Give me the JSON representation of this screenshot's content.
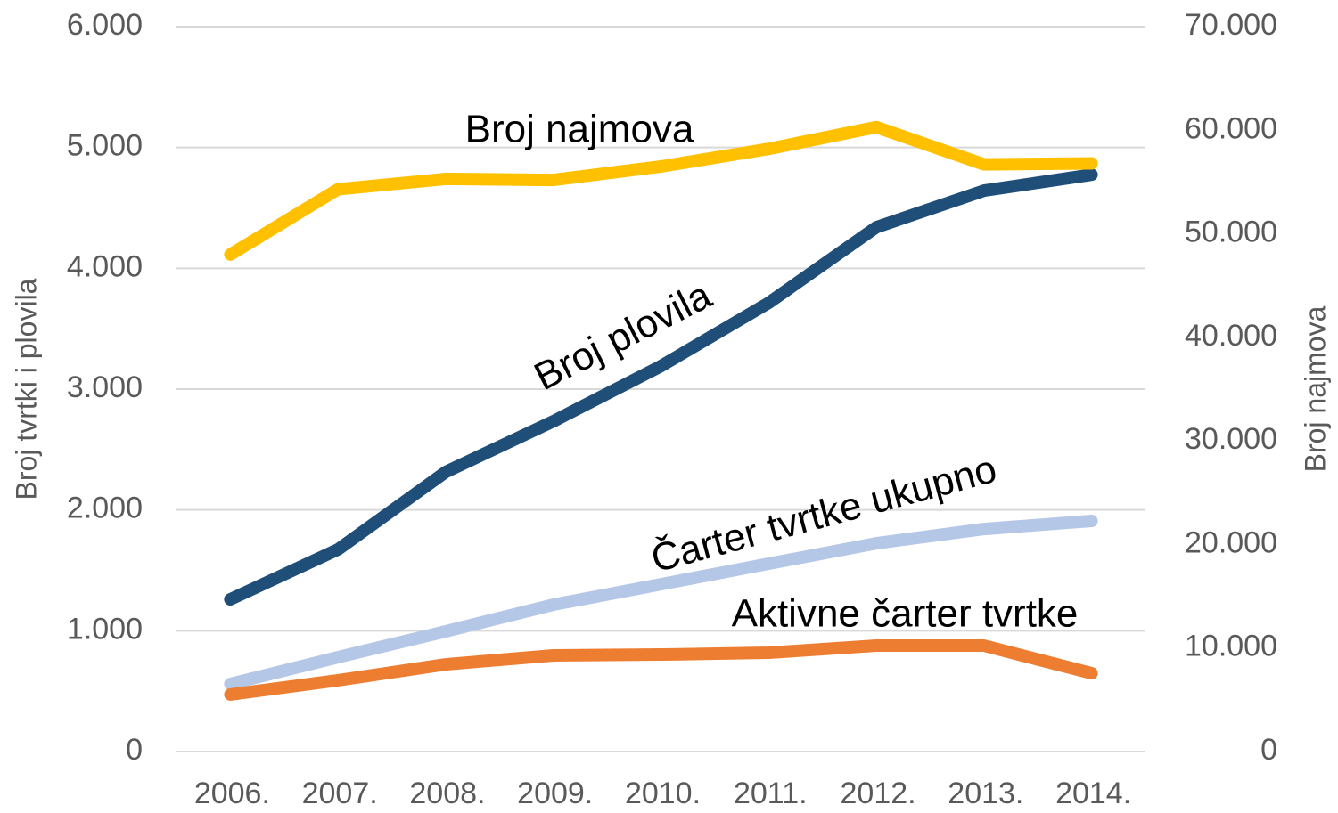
{
  "chart_data": {
    "type": "line",
    "categories": [
      "2006.",
      "2007.",
      "2008.",
      "2009.",
      "2010.",
      "2011.",
      "2012.",
      "2013.",
      "2014."
    ],
    "ylabel": "Broj tvrtki i plovila",
    "y2label": "Broj najmova",
    "ylim": [
      0,
      6000
    ],
    "yticks": [
      0,
      {
        "value": 1000,
        "label": "1.000"
      },
      {
        "value": 2000,
        "label": "2.000"
      },
      {
        "value": 3000,
        "label": "3.000"
      },
      {
        "value": 4000,
        "label": "4.000"
      },
      {
        "value": 5000,
        "label": "5.000"
      },
      {
        "value": 6000,
        "label": "6.000"
      }
    ],
    "y2lim": [
      0,
      70000
    ],
    "y2ticks": [
      0,
      {
        "value": 10000,
        "label": "10.000"
      },
      {
        "value": 20000,
        "label": "20.000"
      },
      {
        "value": 30000,
        "label": "30.000"
      },
      {
        "value": 40000,
        "label": "40.000"
      },
      {
        "value": 50000,
        "label": "50.000"
      },
      {
        "value": 60000,
        "label": "60.000"
      },
      {
        "value": 70000,
        "label": "70.000"
      }
    ],
    "grid": true,
    "series": [
      {
        "name": "Čarter tvrtke ukupno",
        "color": "#b4c7e7",
        "values": [
          560,
          781,
          995,
          1216,
          1385,
          1555,
          1724,
          1842,
          1909
        ]
      },
      {
        "name": "Aktivne čarter tvrtke",
        "color": "#ed7d31",
        "values": [
          472,
          590,
          722,
          796,
          803,
          818,
          877,
          877,
          648
        ]
      },
      {
        "name": "Broj plovila",
        "color": "#1f4e79",
        "values": [
          1260,
          1673,
          2314,
          2734,
          3191,
          3714,
          4340,
          4643,
          4775
        ]
      },
      {
        "name": "Broj najmova",
        "color": "#ffc000",
        "axis": "y2",
        "values": [
          48000,
          54300,
          55300,
          55200,
          56500,
          58200,
          60300,
          56700,
          56800
        ]
      }
    ]
  }
}
